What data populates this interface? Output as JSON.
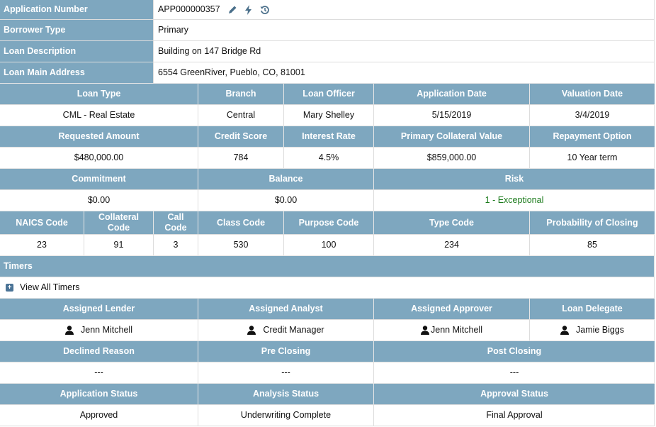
{
  "details": {
    "application_number": {
      "label": "Application Number",
      "value": "APP000000357"
    },
    "borrower_type": {
      "label": "Borrower Type",
      "value": "Primary"
    },
    "loan_description": {
      "label": "Loan Description",
      "value": "Building on 147 Bridge Rd"
    },
    "loan_main_address": {
      "label": "Loan Main Address",
      "value": "6554 GreenRiver, Pueblo, CO, 81001"
    }
  },
  "icons": {
    "edit": "pencil-icon",
    "action": "lightning-icon",
    "history": "history-icon",
    "expand": "plus-square-icon",
    "user": "user-icon"
  },
  "row1": {
    "headers": [
      "Loan Type",
      "Branch",
      "Loan Officer",
      "Application Date",
      "Valuation Date"
    ],
    "values": [
      "CML - Real Estate",
      "Central",
      "Mary Shelley",
      "5/15/2019",
      "3/4/2019"
    ]
  },
  "row2": {
    "headers": [
      "Requested Amount",
      "Credit Score",
      "Interest Rate",
      "Primary Collateral Value",
      "Repayment Option"
    ],
    "values": [
      "$480,000.00",
      "784",
      "4.5%",
      "$859,000.00",
      "10 Year term"
    ]
  },
  "row3": {
    "headers": [
      "Commitment",
      "Balance",
      "Risk"
    ],
    "values": [
      "$0.00",
      "$0.00",
      "1 - Exceptional"
    ]
  },
  "row4": {
    "headers": [
      "NAICS Code",
      "Collateral Code",
      "Call Code",
      "Class Code",
      "Purpose Code",
      "Type Code",
      "Probability of Closing"
    ],
    "values": [
      "23",
      "91",
      "3",
      "530",
      "100",
      "234",
      "85"
    ]
  },
  "timers": {
    "title": "Timers",
    "link": "View All Timers"
  },
  "assignments": {
    "headers": [
      "Assigned Lender",
      "Assigned Analyst",
      "Assigned Approver",
      "Loan Delegate"
    ],
    "values": [
      "Jenn Mitchell",
      "Credit Manager",
      "Jenn Mitchell",
      "Jamie Biggs"
    ]
  },
  "closing": {
    "headers": [
      "Declined Reason",
      "Pre Closing",
      "Post Closing"
    ],
    "values": [
      "---",
      "---",
      "---"
    ]
  },
  "status": {
    "headers": [
      "Application Status",
      "Analysis Status",
      "Approval Status"
    ],
    "values": [
      "Approved",
      "Underwriting Complete",
      "Final Approval"
    ]
  },
  "colors": {
    "header_bg": "#7ea7bf",
    "risk_text": "#1a7a1a",
    "icon": "#4a6f8a"
  }
}
